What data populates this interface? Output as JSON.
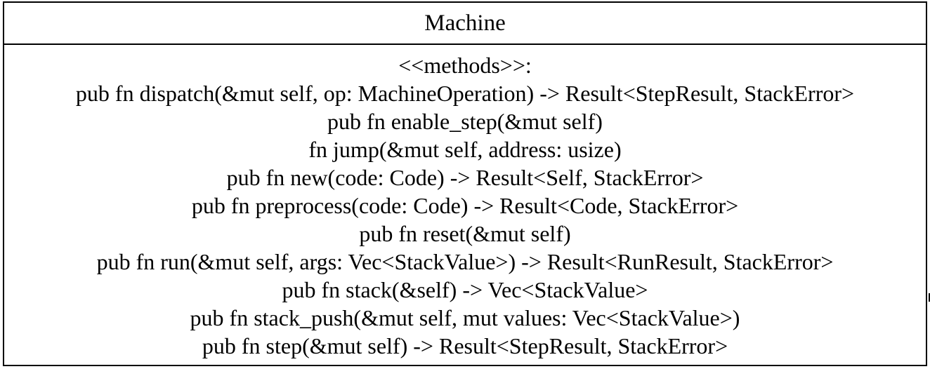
{
  "class_box": {
    "name": "Machine",
    "stereotype": "<<methods>>:",
    "methods": [
      "pub fn dispatch(&mut self, op: MachineOperation) -> Result<StepResult, StackError>",
      "pub fn enable_step(&mut self)",
      "fn jump(&mut self, address: usize)",
      "pub fn new(code: Code) -> Result<Self, StackError>",
      "pub fn preprocess(code: Code) -> Result<Code, StackError>",
      "pub fn reset(&mut self)",
      "pub fn run(&mut self, args: Vec<StackValue>) -> Result<RunResult, StackError>",
      "pub fn stack(&self) -> Vec<StackValue>",
      "pub fn stack_push(&mut self, mut values: Vec<StackValue>)",
      "pub fn step(&mut self) -> Result<StepResult, StackError>"
    ]
  }
}
